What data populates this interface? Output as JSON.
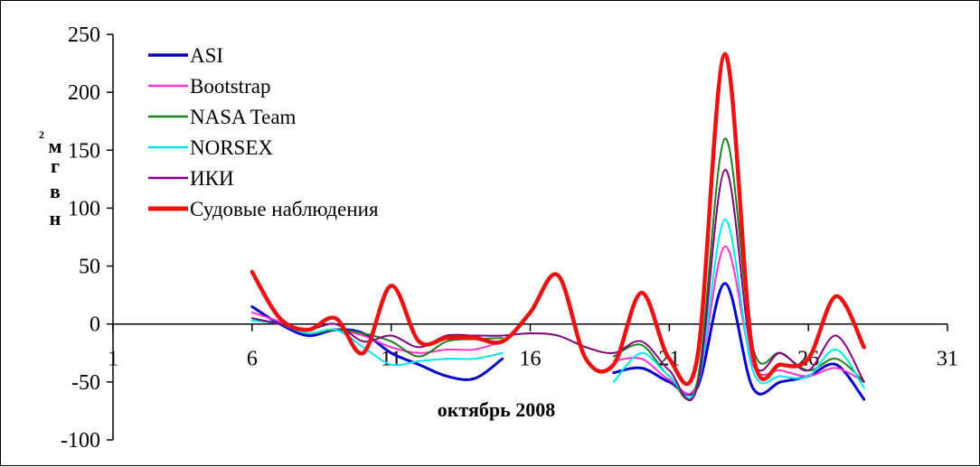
{
  "chart_data": {
    "type": "line",
    "xlabel": "октябрь 2008",
    "ylabel": {
      "letters": [
        "м",
        "г",
        "в",
        "н"
      ],
      "superscript": "2"
    },
    "xlim": [
      1,
      31
    ],
    "ylim": [
      -100,
      250
    ],
    "xticks": [
      1,
      6,
      11,
      16,
      21,
      26,
      31
    ],
    "yticks": [
      250,
      200,
      150,
      100,
      50,
      0,
      -50,
      -100
    ],
    "legend_position": "top-left",
    "series": [
      {
        "name": "ASI",
        "color": "#0000CC",
        "segments": [
          [
            [
              6,
              15
            ],
            [
              7,
              0
            ],
            [
              8,
              -10
            ],
            [
              9,
              -5
            ],
            [
              10,
              -8
            ],
            [
              11,
              -25
            ],
            [
              12,
              -35
            ],
            [
              13,
              -45
            ],
            [
              14,
              -47
            ],
            [
              15,
              -30
            ]
          ],
          [
            [
              19,
              -42
            ],
            [
              20,
              -38
            ],
            [
              21,
              -50
            ],
            [
              22,
              -55
            ],
            [
              23,
              35
            ],
            [
              24,
              -55
            ],
            [
              25,
              -50
            ],
            [
              26,
              -45
            ],
            [
              27,
              -35
            ],
            [
              28,
              -65
            ]
          ]
        ]
      },
      {
        "name": "Bootstrap",
        "color": "#FF33CC",
        "segments": [
          [
            [
              6,
              10
            ],
            [
              7,
              2
            ],
            [
              8,
              -8
            ],
            [
              9,
              -5
            ],
            [
              10,
              -10
            ],
            [
              11,
              -20
            ],
            [
              12,
              -25
            ],
            [
              13,
              -22
            ],
            [
              14,
              -22
            ],
            [
              15,
              -15
            ]
          ],
          [
            [
              19,
              -32
            ],
            [
              20,
              -30
            ],
            [
              21,
              -48
            ],
            [
              22,
              -52
            ],
            [
              23,
              67
            ],
            [
              24,
              -35
            ],
            [
              25,
              -40
            ],
            [
              26,
              -45
            ],
            [
              27,
              -38
            ],
            [
              28,
              -50
            ]
          ]
        ]
      },
      {
        "name": "NASA Team",
        "color": "#1E7F1E",
        "segments": [
          [
            [
              6,
              5
            ],
            [
              7,
              0
            ],
            [
              8,
              -8
            ],
            [
              9,
              -5
            ],
            [
              10,
              -8
            ],
            [
              11,
              -15
            ],
            [
              12,
              -28
            ],
            [
              13,
              -15
            ],
            [
              14,
              -13
            ],
            [
              15,
              -12
            ]
          ],
          [
            [
              19,
              -28
            ],
            [
              20,
              -18
            ],
            [
              21,
              -45
            ],
            [
              22,
              -50
            ],
            [
              23,
              160
            ],
            [
              24,
              -20
            ],
            [
              25,
              -25
            ],
            [
              26,
              -40
            ],
            [
              27,
              -30
            ],
            [
              28,
              -50
            ]
          ]
        ]
      },
      {
        "name": "NORSEX",
        "color": "#00E5EE",
        "segments": [
          [
            [
              6,
              3
            ],
            [
              7,
              0
            ],
            [
              8,
              -8
            ],
            [
              9,
              -5
            ],
            [
              10,
              -20
            ],
            [
              11,
              -35
            ],
            [
              12,
              -32
            ],
            [
              13,
              -30
            ],
            [
              14,
              -30
            ],
            [
              15,
              -25
            ]
          ],
          [
            [
              19,
              -50
            ],
            [
              20,
              -25
            ],
            [
              21,
              -45
            ],
            [
              22,
              -55
            ],
            [
              23,
              90
            ],
            [
              24,
              -40
            ],
            [
              25,
              -45
            ],
            [
              26,
              -45
            ],
            [
              27,
              -22
            ],
            [
              28,
              -55
            ]
          ]
        ]
      },
      {
        "name": "ИКИ",
        "color": "#800080",
        "segments": [
          [
            [
              6,
              5
            ],
            [
              7,
              0
            ],
            [
              8,
              -5
            ],
            [
              9,
              0
            ],
            [
              10,
              -15
            ],
            [
              11,
              -10
            ],
            [
              12,
              -20
            ],
            [
              13,
              -10
            ],
            [
              14,
              -10
            ],
            [
              15,
              -10
            ],
            [
              16,
              -8
            ],
            [
              17,
              -10
            ],
            [
              18,
              -20
            ],
            [
              19,
              -25
            ],
            [
              20,
              -15
            ],
            [
              21,
              -40
            ],
            [
              22,
              -55
            ],
            [
              23,
              133
            ],
            [
              24,
              -30
            ],
            [
              25,
              -25
            ],
            [
              26,
              -40
            ],
            [
              27,
              -10
            ],
            [
              28,
              -50
            ]
          ]
        ]
      },
      {
        "name": "Судовые наблюдения",
        "color": "#EE1111",
        "segments": [
          [
            [
              6,
              45
            ],
            [
              7,
              5
            ],
            [
              8,
              -5
            ],
            [
              9,
              5
            ],
            [
              10,
              -25
            ],
            [
              11,
              33
            ],
            [
              12,
              -15
            ],
            [
              13,
              -12
            ],
            [
              14,
              -12
            ],
            [
              15,
              -15
            ],
            [
              16,
              10
            ],
            [
              17,
              42
            ],
            [
              18,
              -30
            ],
            [
              19,
              -35
            ],
            [
              20,
              27
            ],
            [
              21,
              -30
            ],
            [
              22,
              -30
            ],
            [
              23,
              233
            ],
            [
              24,
              -25
            ],
            [
              25,
              -35
            ],
            [
              26,
              -30
            ],
            [
              27,
              24
            ],
            [
              28,
              -20
            ]
          ]
        ]
      }
    ]
  }
}
